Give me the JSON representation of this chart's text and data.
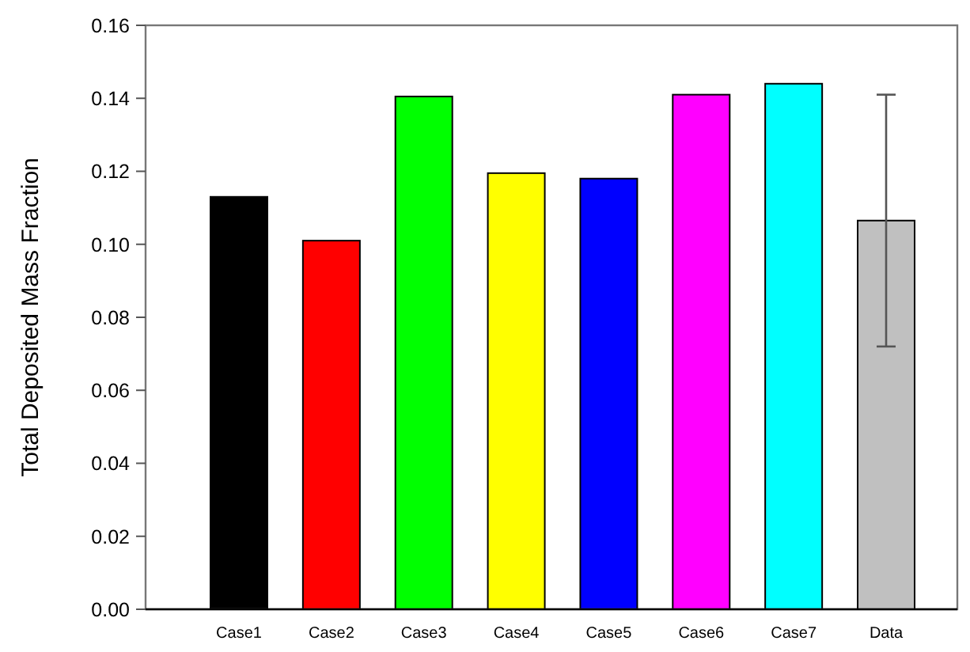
{
  "chart_data": {
    "type": "bar",
    "ylabel": "Total Deposited Mass Fraction",
    "categories": [
      "Case1",
      "Case2",
      "Case3",
      "Case4",
      "Case5",
      "Case6",
      "Case7",
      "Data"
    ],
    "values": [
      0.113,
      0.101,
      0.1405,
      0.1195,
      0.118,
      0.141,
      0.144,
      0.1065
    ],
    "colors": [
      "#000000",
      "#ff0000",
      "#00ff00",
      "#ffff00",
      "#0000ff",
      "#ff00ff",
      "#00ffff",
      "#c0c0c0"
    ],
    "errors": [
      null,
      null,
      null,
      null,
      null,
      null,
      null,
      [
        0.072,
        0.141
      ]
    ],
    "ylim": [
      0,
      0.16
    ],
    "yticks": [
      {
        "value": 0,
        "label": "0.00"
      },
      0.02,
      0.04,
      0.06,
      0.08,
      {
        "value": 0.1,
        "label": "0.10"
      },
      0.12,
      0.14,
      0.16
    ],
    "grid": false
  }
}
